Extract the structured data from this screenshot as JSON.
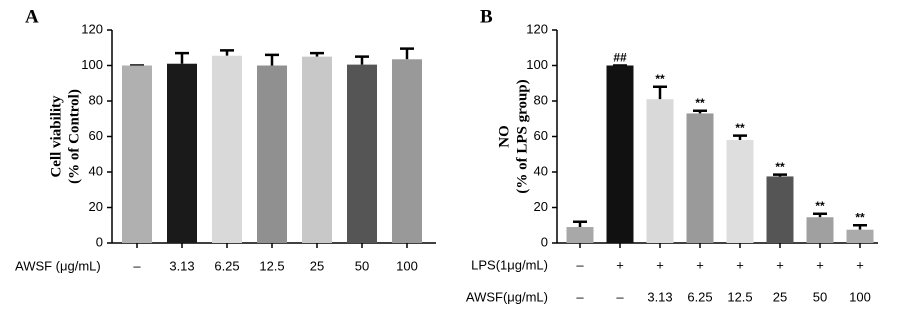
{
  "chart_data": [
    {
      "type": "bar",
      "title": "A",
      "y_label": [
        "Cell viability",
        "(% of Control)"
      ],
      "row_label": "AWSF (μg/mL)",
      "categories": [
        "–",
        "3.13",
        "6.25",
        "12.5",
        "25",
        "50",
        "100"
      ],
      "values": [
        100,
        101,
        105.5,
        100,
        105,
        100.5,
        103.5
      ],
      "errors": [
        0,
        6,
        3,
        6,
        2,
        4.5,
        6
      ],
      "colors": [
        "#b0b0b0",
        "#1a1a1a",
        "#d9d9d9",
        "#909090",
        "#c8c8c8",
        "#555555",
        "#999999"
      ],
      "ylim": [
        0,
        120
      ],
      "yticks": [
        0,
        20,
        40,
        60,
        80,
        100,
        120
      ]
    },
    {
      "type": "bar",
      "title": "B",
      "y_label": [
        "NO",
        "(% of LPS group)"
      ],
      "row_label": "AWSF(μg/mL)",
      "lps_label": "LPS(1μg/mL)",
      "lps_row": [
        "–",
        "+",
        "+",
        "+",
        "+",
        "+",
        "+",
        "+"
      ],
      "categories": [
        "–",
        "–",
        "3.13",
        "6.25",
        "12.5",
        "25",
        "50",
        "100"
      ],
      "values": [
        9,
        100,
        81,
        73,
        58,
        37.5,
        14.5,
        7.5
      ],
      "errors": [
        3,
        0,
        7,
        1.5,
        2.5,
        1,
        2,
        2.5
      ],
      "annotations": [
        null,
        "##",
        "**",
        "**",
        "**",
        "**",
        "**",
        "**"
      ],
      "colors": [
        "#a8a8a8",
        "#111111",
        "#d9d9d9",
        "#9a9a9a",
        "#dedede",
        "#555555",
        "#a0a0a0",
        "#aaaaaa"
      ],
      "ylim": [
        0,
        120
      ],
      "yticks": [
        0,
        20,
        40,
        60,
        80,
        100,
        120
      ]
    }
  ]
}
